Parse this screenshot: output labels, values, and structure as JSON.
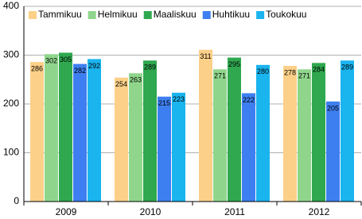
{
  "chart_data": {
    "type": "bar",
    "categories": [
      "2009",
      "2010",
      "2011",
      "2012"
    ],
    "series": [
      {
        "name": "Tammikuu",
        "color": "#fcd088",
        "values": [
          286,
          254,
          311,
          278
        ]
      },
      {
        "name": "Helmikuu",
        "color": "#8fd68c",
        "values": [
          302,
          263,
          271,
          271
        ]
      },
      {
        "name": "Maaliskuu",
        "color": "#2fa84f",
        "values": [
          305,
          289,
          295,
          284
        ]
      },
      {
        "name": "Huhtikuu",
        "color": "#3d7ff0",
        "values": [
          282,
          215,
          222,
          205
        ]
      },
      {
        "name": "Toukokuu",
        "color": "#1ab4ef",
        "values": [
          292,
          223,
          280,
          289
        ]
      }
    ],
    "ylim": [
      0,
      400
    ],
    "yticks": [
      0,
      100,
      200,
      300,
      400
    ],
    "grid": true,
    "legend": "top-left"
  }
}
